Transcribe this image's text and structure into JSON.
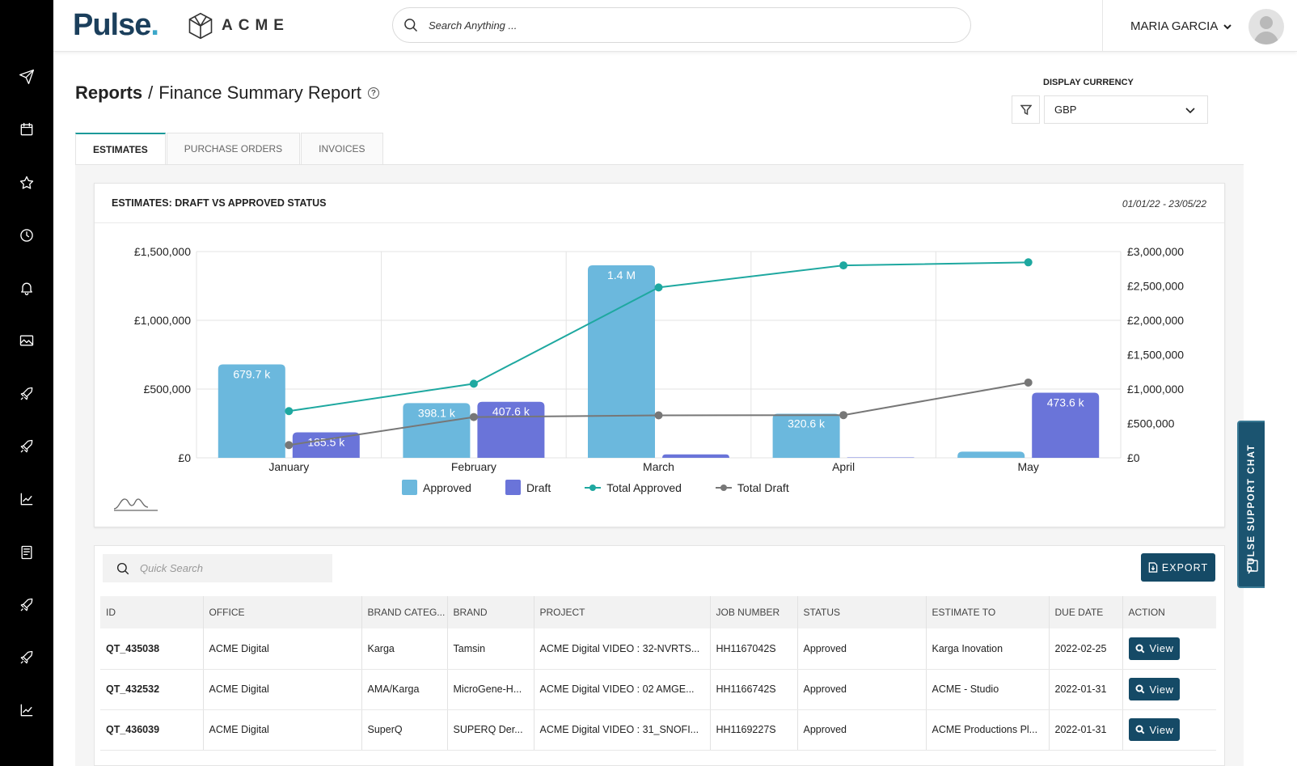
{
  "header": {
    "brand": "Pulse",
    "client_logo": "ACME",
    "search_placeholder": "Search Anything ...",
    "user_name": "MARIA GARCIA"
  },
  "sidebar": {
    "icons": [
      "send-icon",
      "calendar-icon",
      "star-icon",
      "clock-icon",
      "bell-icon",
      "image-icon",
      "rocket-icon",
      "rocket-icon",
      "trending-chart-icon",
      "book-icon",
      "rocket-icon",
      "rocket-icon",
      "trending-chart-icon"
    ]
  },
  "page": {
    "breadcrumb_root": "Reports",
    "breadcrumb_sep": "/",
    "title": "Finance Summary Report",
    "currency_label": "DISPLAY CURRENCY",
    "currency_value": "GBP"
  },
  "tabs": [
    {
      "label": "ESTIMATES",
      "active": true
    },
    {
      "label": "PURCHASE ORDERS",
      "active": false
    },
    {
      "label": "INVOICES",
      "active": false
    }
  ],
  "chart": {
    "title": "ESTIMATES: DRAFT VS APPROVED STATUS",
    "date_range": "01/01/22 - 23/05/22"
  },
  "chart_data": {
    "type": "bar",
    "categories": [
      "January",
      "February",
      "March",
      "April",
      "May"
    ],
    "series": [
      {
        "name": "Approved",
        "type": "bar",
        "axis": "left",
        "color": "#6bb8dd",
        "values": [
          679700,
          398100,
          1400000,
          320600,
          45000
        ],
        "labels": [
          "679.7 k",
          "398.1 k",
          "1.4 M",
          "320.6 k",
          ""
        ]
      },
      {
        "name": "Draft",
        "type": "bar",
        "axis": "left",
        "color": "#6a74d9",
        "values": [
          185500,
          407600,
          25000,
          3000,
          473600
        ],
        "labels": [
          "185.5 k",
          "407.6 k",
          "",
          "",
          "473.6 k"
        ]
      },
      {
        "name": "Total Approved",
        "type": "line",
        "axis": "right",
        "color": "#1ea8a0",
        "values": [
          679700,
          1077800,
          2477800,
          2798400,
          2843400
        ]
      },
      {
        "name": "Total Draft",
        "type": "line",
        "axis": "right",
        "color": "#777777",
        "values": [
          185500,
          593100,
          618100,
          621100,
          1094700
        ]
      }
    ],
    "yleft": {
      "min": 0,
      "max": 1500000,
      "ticks": [
        "£0",
        "£500,000",
        "£1,000,000",
        "£1,500,000"
      ]
    },
    "yright": {
      "min": 0,
      "max": 3000000,
      "ticks": [
        "£0",
        "£500,000",
        "£1,000,000",
        "£1,500,000",
        "£2,000,000",
        "£2,500,000",
        "£3,000,000"
      ]
    },
    "grid": true,
    "legend": "bottom"
  },
  "table": {
    "search_placeholder": "Quick Search",
    "export_label": "EXPORT",
    "columns": [
      "ID",
      "OFFICE",
      "BRAND CATEG...",
      "BRAND",
      "PROJECT",
      "JOB NUMBER",
      "STATUS",
      "ESTIMATE TO",
      "DUE DATE",
      "ACTION"
    ],
    "rows": [
      {
        "id": "QT_435038",
        "office": "ACME Digital",
        "brand_category": "Karga",
        "brand": "Tamsin",
        "project": "ACME Digital VIDEO : 32-NVRTS...",
        "job_number": "HH1167042S",
        "status": "Approved",
        "estimate_to": "Karga Inovation",
        "due_date": "2022-02-25",
        "action": "View"
      },
      {
        "id": "QT_432532",
        "office": "ACME Digital",
        "brand_category": "AMA/Karga",
        "brand": "MicroGene-H...",
        "project": "ACME Digital VIDEO : 02 AMGE...",
        "job_number": "HH1166742S",
        "status": "Approved",
        "estimate_to": "ACME - Studio",
        "due_date": "2022-01-31",
        "action": "View"
      },
      {
        "id": "QT_436039",
        "office": "ACME Digital",
        "brand_category": "SuperQ",
        "brand": "SUPERQ Der...",
        "project": "ACME Digital VIDEO : 31_SNOFI...",
        "job_number": "HH1169227S",
        "status": "Approved",
        "estimate_to": "ACME Productions Pl...",
        "due_date": "2022-01-31",
        "action": "View"
      }
    ]
  },
  "support_chat": {
    "label": "PULSE SUPPORT CHAT"
  }
}
